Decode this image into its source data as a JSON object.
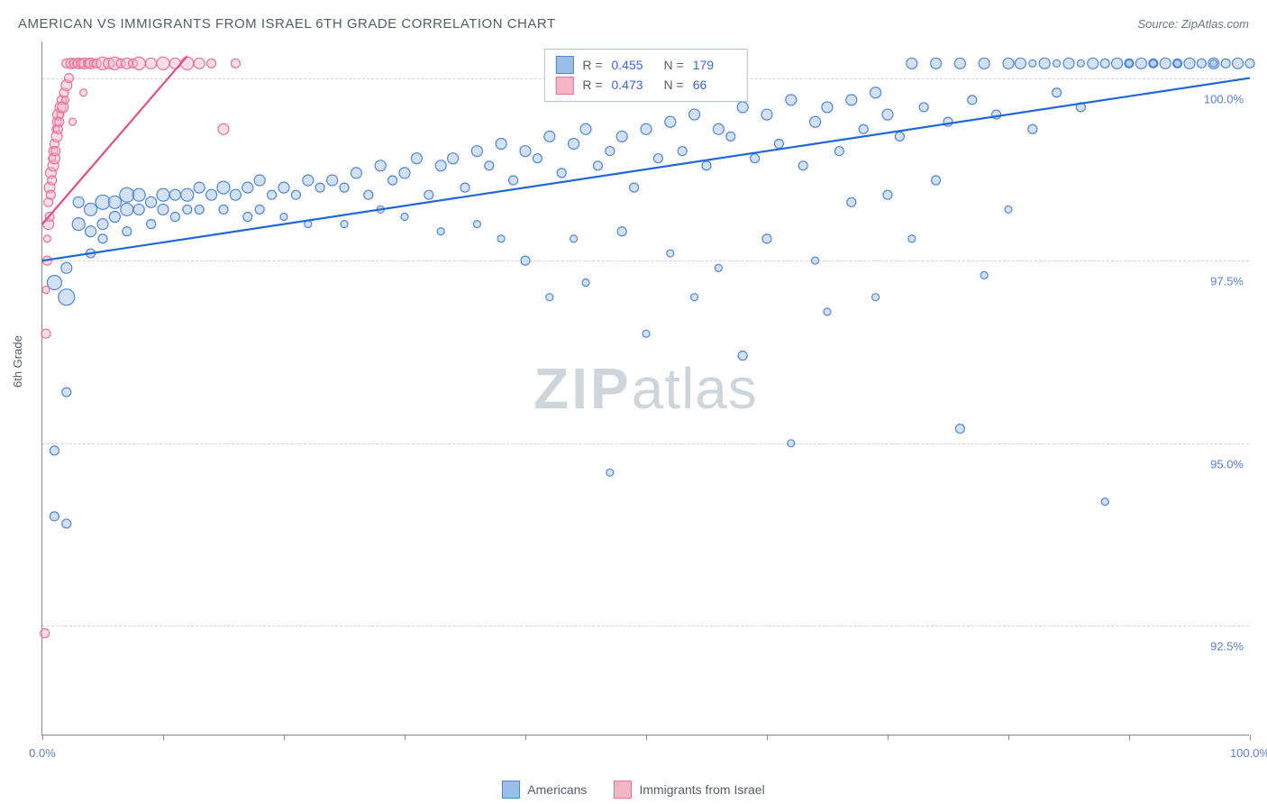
{
  "header": {
    "title": "AMERICAN VS IMMIGRANTS FROM ISRAEL 6TH GRADE CORRELATION CHART",
    "source": "Source: ZipAtlas.com"
  },
  "chart": {
    "type": "scatter",
    "ylabel": "6th Grade",
    "watermark_a": "ZIP",
    "watermark_b": "atlas",
    "background_color": "#ffffff",
    "grid_color": "#d0d4d8",
    "axis_color": "#888888",
    "xlim": [
      0,
      100
    ],
    "ylim": [
      91,
      100.5
    ],
    "x_ticks": [
      0,
      10,
      20,
      30,
      40,
      50,
      60,
      70,
      80,
      90,
      100
    ],
    "x_tick_labels": {
      "0": "0.0%",
      "100": "100.0%"
    },
    "y_gridlines": [
      92.5,
      95.0,
      97.5,
      100.0
    ],
    "y_tick_labels": [
      "92.5%",
      "95.0%",
      "97.5%",
      "100.0%"
    ],
    "marker_opacity": 0.45,
    "marker_stroke_width": 1.2,
    "trend_line_width": 2.2,
    "label_fontsize": 13,
    "series": [
      {
        "name": "Americans",
        "fill": "#9bbde9",
        "stroke": "#4f86d9",
        "trend_color": "#1f66d6",
        "R": "0.455",
        "N": "179",
        "trend": {
          "x1": 0,
          "y1": 97.5,
          "x2": 100,
          "y2": 100.0
        },
        "points": [
          [
            1,
            97.2,
            16
          ],
          [
            1,
            94.9,
            10
          ],
          [
            1,
            94.0,
            10
          ],
          [
            2,
            97.0,
            18
          ],
          [
            2,
            97.4,
            12
          ],
          [
            2,
            95.7,
            10
          ],
          [
            2,
            93.9,
            10
          ],
          [
            3,
            98.3,
            12
          ],
          [
            3,
            98.0,
            14
          ],
          [
            4,
            98.2,
            14
          ],
          [
            4,
            97.9,
            12
          ],
          [
            4,
            97.6,
            10
          ],
          [
            5,
            98.3,
            16
          ],
          [
            5,
            98.0,
            12
          ],
          [
            5,
            97.8,
            10
          ],
          [
            6,
            98.3,
            14
          ],
          [
            6,
            98.1,
            12
          ],
          [
            7,
            98.4,
            16
          ],
          [
            7,
            98.2,
            14
          ],
          [
            7,
            97.9,
            10
          ],
          [
            8,
            98.4,
            14
          ],
          [
            8,
            98.2,
            12
          ],
          [
            9,
            98.3,
            12
          ],
          [
            9,
            98.0,
            10
          ],
          [
            10,
            98.4,
            14
          ],
          [
            10,
            98.2,
            12
          ],
          [
            11,
            98.4,
            12
          ],
          [
            11,
            98.1,
            10
          ],
          [
            12,
            98.4,
            14
          ],
          [
            12,
            98.2,
            10
          ],
          [
            13,
            98.5,
            12
          ],
          [
            13,
            98.2,
            10
          ],
          [
            14,
            98.4,
            12
          ],
          [
            15,
            98.5,
            14
          ],
          [
            15,
            98.2,
            10
          ],
          [
            16,
            98.4,
            12
          ],
          [
            17,
            98.5,
            12
          ],
          [
            17,
            98.1,
            10
          ],
          [
            18,
            98.6,
            12
          ],
          [
            18,
            98.2,
            10
          ],
          [
            19,
            98.4,
            10
          ],
          [
            20,
            98.5,
            12
          ],
          [
            20,
            98.1,
            8
          ],
          [
            21,
            98.4,
            10
          ],
          [
            22,
            98.6,
            12
          ],
          [
            22,
            98.0,
            8
          ],
          [
            23,
            98.5,
            10
          ],
          [
            24,
            98.6,
            12
          ],
          [
            25,
            98.5,
            10
          ],
          [
            25,
            98.0,
            8
          ],
          [
            26,
            98.7,
            12
          ],
          [
            27,
            98.4,
            10
          ],
          [
            28,
            98.8,
            12
          ],
          [
            28,
            98.2,
            8
          ],
          [
            29,
            98.6,
            10
          ],
          [
            30,
            98.7,
            12
          ],
          [
            30,
            98.1,
            8
          ],
          [
            31,
            98.9,
            12
          ],
          [
            32,
            98.4,
            10
          ],
          [
            33,
            98.8,
            12
          ],
          [
            33,
            97.9,
            8
          ],
          [
            34,
            98.9,
            12
          ],
          [
            35,
            98.5,
            10
          ],
          [
            36,
            99.0,
            12
          ],
          [
            36,
            98.0,
            8
          ],
          [
            37,
            98.8,
            10
          ],
          [
            38,
            99.1,
            12
          ],
          [
            38,
            97.8,
            8
          ],
          [
            39,
            98.6,
            10
          ],
          [
            40,
            99.0,
            12
          ],
          [
            40,
            97.5,
            10
          ],
          [
            41,
            98.9,
            10
          ],
          [
            42,
            99.2,
            12
          ],
          [
            42,
            97.0,
            8
          ],
          [
            43,
            98.7,
            10
          ],
          [
            44,
            99.1,
            12
          ],
          [
            44,
            97.8,
            8
          ],
          [
            45,
            99.3,
            12
          ],
          [
            45,
            97.2,
            8
          ],
          [
            46,
            98.8,
            10
          ],
          [
            47,
            99.0,
            10
          ],
          [
            47,
            94.6,
            8
          ],
          [
            48,
            99.2,
            12
          ],
          [
            48,
            97.9,
            10
          ],
          [
            49,
            98.5,
            10
          ],
          [
            50,
            99.3,
            12
          ],
          [
            50,
            96.5,
            8
          ],
          [
            51,
            98.9,
            10
          ],
          [
            52,
            99.4,
            12
          ],
          [
            52,
            97.6,
            8
          ],
          [
            53,
            99.0,
            10
          ],
          [
            54,
            99.5,
            12
          ],
          [
            54,
            97.0,
            8
          ],
          [
            55,
            98.8,
            10
          ],
          [
            56,
            99.3,
            12
          ],
          [
            56,
            97.4,
            8
          ],
          [
            57,
            99.2,
            10
          ],
          [
            58,
            99.6,
            12
          ],
          [
            58,
            96.2,
            10
          ],
          [
            59,
            98.9,
            10
          ],
          [
            60,
            99.5,
            12
          ],
          [
            60,
            97.8,
            10
          ],
          [
            61,
            99.1,
            10
          ],
          [
            62,
            99.7,
            12
          ],
          [
            62,
            95.0,
            8
          ],
          [
            63,
            98.8,
            10
          ],
          [
            64,
            99.4,
            12
          ],
          [
            64,
            97.5,
            8
          ],
          [
            65,
            99.6,
            12
          ],
          [
            65,
            96.8,
            8
          ],
          [
            66,
            99.0,
            10
          ],
          [
            67,
            99.7,
            12
          ],
          [
            67,
            98.3,
            10
          ],
          [
            68,
            99.3,
            10
          ],
          [
            69,
            99.8,
            12
          ],
          [
            69,
            97.0,
            8
          ],
          [
            70,
            99.5,
            12
          ],
          [
            70,
            98.4,
            10
          ],
          [
            71,
            99.2,
            10
          ],
          [
            72,
            100.2,
            12
          ],
          [
            72,
            97.8,
            8
          ],
          [
            73,
            99.6,
            10
          ],
          [
            74,
            100.2,
            12
          ],
          [
            74,
            98.6,
            10
          ],
          [
            75,
            99.4,
            10
          ],
          [
            76,
            100.2,
            12
          ],
          [
            76,
            95.2,
            10
          ],
          [
            77,
            99.7,
            10
          ],
          [
            78,
            100.2,
            12
          ],
          [
            78,
            97.3,
            8
          ],
          [
            79,
            99.5,
            10
          ],
          [
            80,
            100.2,
            12
          ],
          [
            80,
            98.2,
            8
          ],
          [
            81,
            100.2,
            12
          ],
          [
            82,
            99.3,
            10
          ],
          [
            82,
            100.2,
            8
          ],
          [
            83,
            100.2,
            12
          ],
          [
            84,
            99.8,
            10
          ],
          [
            84,
            100.2,
            8
          ],
          [
            85,
            100.2,
            12
          ],
          [
            86,
            99.6,
            10
          ],
          [
            86,
            100.2,
            8
          ],
          [
            87,
            100.2,
            12
          ],
          [
            88,
            100.2,
            10
          ],
          [
            88,
            94.2,
            8
          ],
          [
            89,
            100.2,
            12
          ],
          [
            90,
            100.2,
            10
          ],
          [
            90,
            100.2,
            8
          ],
          [
            91,
            100.2,
            12
          ],
          [
            92,
            100.2,
            10
          ],
          [
            92,
            100.2,
            8
          ],
          [
            93,
            100.2,
            12
          ],
          [
            94,
            100.2,
            10
          ],
          [
            94,
            100.2,
            8
          ],
          [
            95,
            100.2,
            12
          ],
          [
            96,
            100.2,
            10
          ],
          [
            97,
            100.2,
            12
          ],
          [
            97,
            100.2,
            8
          ],
          [
            98,
            100.2,
            10
          ],
          [
            99,
            100.2,
            12
          ],
          [
            100,
            100.2,
            10
          ]
        ]
      },
      {
        "name": "Immigrants from Israel",
        "fill": "#f4b5c5",
        "stroke": "#e97099",
        "trend_color": "#e64b89",
        "R": "0.473",
        "N": "66",
        "trend": {
          "x1": 0,
          "y1": 98.0,
          "x2": 12,
          "y2": 100.3
        },
        "points": [
          [
            0.2,
            92.4,
            10
          ],
          [
            0.3,
            96.5,
            10
          ],
          [
            0.3,
            97.1,
            8
          ],
          [
            0.4,
            97.5,
            10
          ],
          [
            0.4,
            97.8,
            8
          ],
          [
            0.5,
            98.0,
            12
          ],
          [
            0.5,
            98.3,
            10
          ],
          [
            0.6,
            98.1,
            10
          ],
          [
            0.6,
            98.5,
            12
          ],
          [
            0.7,
            98.4,
            10
          ],
          [
            0.7,
            98.7,
            12
          ],
          [
            0.8,
            98.6,
            10
          ],
          [
            0.8,
            98.9,
            8
          ],
          [
            0.9,
            98.8,
            12
          ],
          [
            0.9,
            99.0,
            10
          ],
          [
            1.0,
            98.9,
            12
          ],
          [
            1.0,
            99.1,
            10
          ],
          [
            1.1,
            99.0,
            10
          ],
          [
            1.1,
            99.3,
            8
          ],
          [
            1.2,
            99.2,
            12
          ],
          [
            1.2,
            99.4,
            10
          ],
          [
            1.3,
            99.3,
            10
          ],
          [
            1.3,
            99.5,
            12
          ],
          [
            1.4,
            99.4,
            10
          ],
          [
            1.5,
            99.6,
            12
          ],
          [
            1.5,
            99.5,
            8
          ],
          [
            1.6,
            99.7,
            10
          ],
          [
            1.7,
            99.6,
            12
          ],
          [
            1.8,
            99.8,
            10
          ],
          [
            1.9,
            99.7,
            8
          ],
          [
            2.0,
            99.9,
            12
          ],
          [
            2.0,
            100.2,
            10
          ],
          [
            2.2,
            100.0,
            10
          ],
          [
            2.4,
            100.2,
            12
          ],
          [
            2.5,
            99.4,
            8
          ],
          [
            2.6,
            100.2,
            10
          ],
          [
            2.8,
            100.2,
            8
          ],
          [
            3.0,
            100.2,
            12
          ],
          [
            3.2,
            100.2,
            10
          ],
          [
            3.4,
            99.8,
            8
          ],
          [
            3.5,
            100.2,
            12
          ],
          [
            3.8,
            100.2,
            10
          ],
          [
            4.0,
            100.2,
            12
          ],
          [
            4.2,
            100.2,
            8
          ],
          [
            4.5,
            100.2,
            10
          ],
          [
            5.0,
            100.2,
            14
          ],
          [
            5.5,
            100.2,
            12
          ],
          [
            6.0,
            100.2,
            14
          ],
          [
            6.5,
            100.2,
            10
          ],
          [
            7.0,
            100.2,
            12
          ],
          [
            7.5,
            100.2,
            10
          ],
          [
            8.0,
            100.2,
            14
          ],
          [
            9.0,
            100.2,
            12
          ],
          [
            10.0,
            100.2,
            14
          ],
          [
            11.0,
            100.2,
            12
          ],
          [
            12.0,
            100.2,
            14
          ],
          [
            13.0,
            100.2,
            12
          ],
          [
            14.0,
            100.2,
            10
          ],
          [
            15.0,
            99.3,
            12
          ],
          [
            16.0,
            100.2,
            10
          ]
        ]
      }
    ]
  },
  "legend": {
    "bottom": [
      {
        "label": "Americans",
        "swatch_fill": "#9bbde9",
        "swatch_stroke": "#4f86d9"
      },
      {
        "label": "Immigrants from Israel",
        "swatch_fill": "#f4b5c5",
        "swatch_stroke": "#e97099"
      }
    ]
  }
}
